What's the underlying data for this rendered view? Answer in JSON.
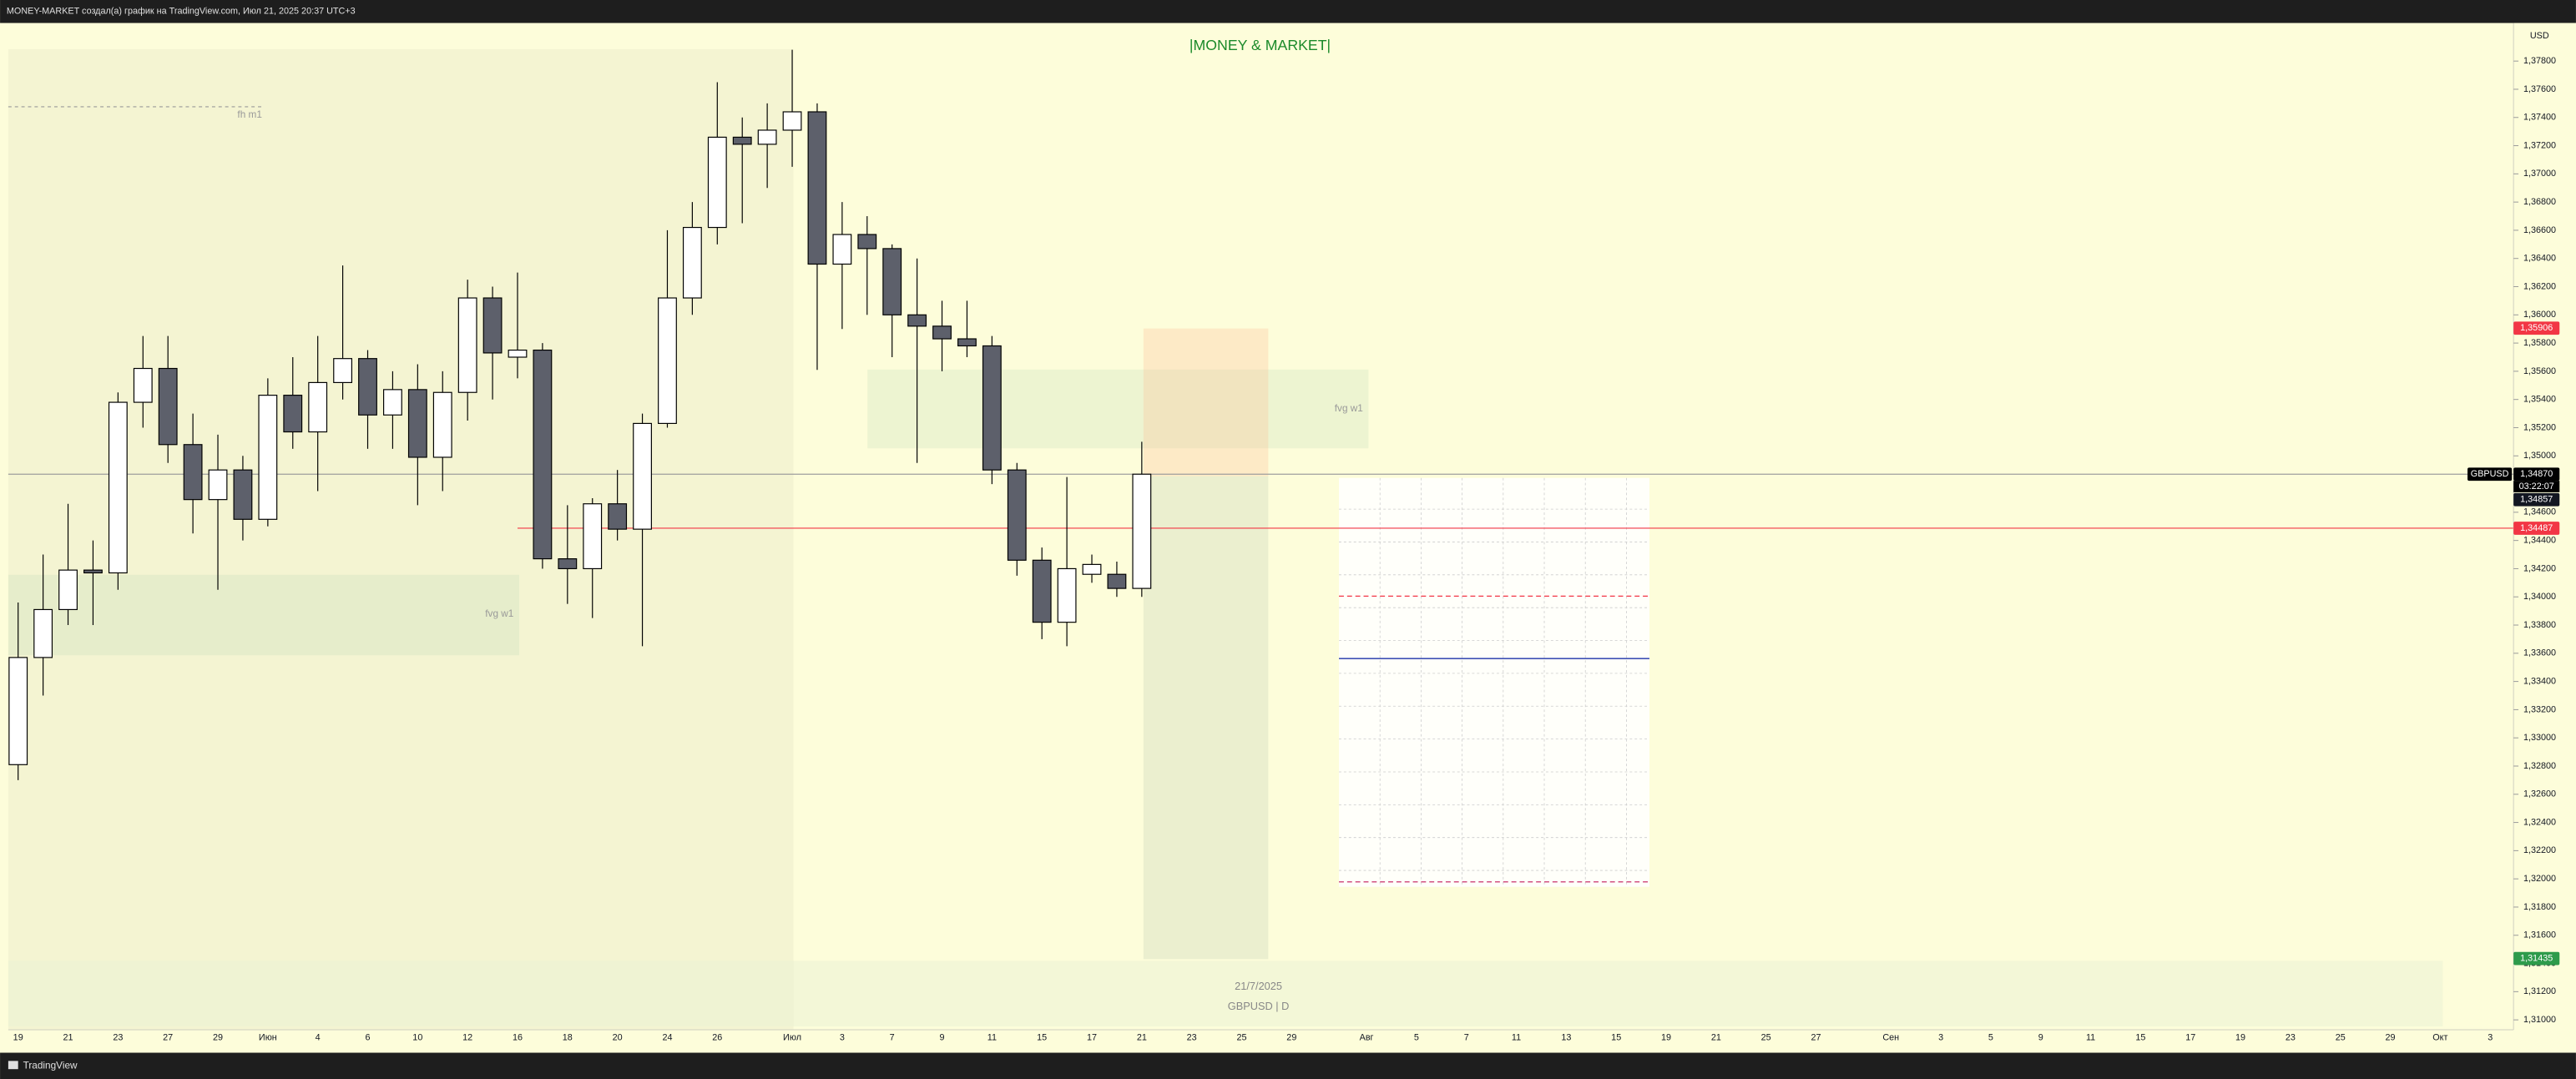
{
  "header": "MONEY-MARKET создал(а) график на TradingView.com, Июл 21, 2025 20:37 UTC+3",
  "footer": "TradingView",
  "chart_data": {
    "type": "candlestick",
    "title": "|MONEY & MARKET|",
    "currency": "USD",
    "watermark": [
      "21/7/2025",
      "GBPUSD | D"
    ],
    "annotations": [
      "fh m1",
      "fvg w1",
      "fvg w1"
    ],
    "categories": [
      "19",
      null,
      "21",
      null,
      "23",
      null,
      "27",
      null,
      "29",
      null,
      "Июн",
      null,
      "4",
      null,
      "6",
      null,
      "10",
      null,
      "12",
      null,
      "16",
      null,
      "18",
      null,
      "20",
      null,
      "24",
      null,
      "26",
      null,
      null,
      "Июл",
      null,
      "3",
      null,
      "7",
      null,
      "9",
      null,
      "11",
      null,
      "15",
      null,
      "17",
      null,
      "21",
      null,
      "23",
      null,
      "25",
      null,
      "29",
      null,
      null,
      "Авг",
      null,
      "5",
      null,
      "7",
      null,
      "11",
      null,
      "13",
      null,
      "15",
      null,
      "19",
      null,
      "21",
      null,
      "25",
      null,
      "27",
      null,
      null,
      "Сен",
      null,
      "3",
      null,
      "5",
      null,
      "9",
      null,
      "11",
      null,
      "15",
      null,
      "17",
      null,
      "19",
      null,
      "23",
      null,
      "25",
      null,
      "29",
      null,
      "Окт",
      null,
      "3"
    ],
    "open": [
      1.3281,
      1.3357,
      1.3391,
      1.3419,
      1.3417,
      1.3538,
      1.3562,
      1.3508,
      1.3469,
      1.349,
      1.3455,
      1.3543,
      1.3517,
      1.3552,
      1.3569,
      1.3529,
      1.3547,
      1.3499,
      1.3545,
      1.3612,
      1.357,
      1.3575,
      1.3427,
      1.342,
      1.3466,
      1.3448,
      1.3523,
      1.3612,
      1.3662,
      1.3726,
      1.3721,
      1.3731,
      1.3744,
      1.3636,
      1.3657,
      1.3647,
      1.36,
      1.3592,
      1.3583,
      1.3578,
      1.349,
      1.3426,
      1.3382,
      1.3416,
      1.3416,
      1.3406,
      null,
      null,
      null,
      null,
      null,
      null,
      null,
      null,
      null,
      null,
      null,
      null,
      null,
      null,
      null,
      null,
      null,
      null,
      null,
      null,
      null,
      null,
      null,
      null,
      null,
      null,
      null,
      null,
      null,
      null,
      null,
      null,
      null,
      null,
      null,
      null,
      null,
      null,
      null,
      null,
      null,
      null,
      null,
      null,
      null,
      null,
      null,
      null,
      null,
      null,
      null,
      null,
      null,
      null
    ],
    "high": [
      1.3396,
      1.343,
      1.3466,
      1.344,
      1.3545,
      1.3585,
      1.3585,
      1.353,
      1.3515,
      1.35,
      1.3555,
      1.357,
      1.3585,
      1.3635,
      1.3575,
      1.356,
      1.3565,
      1.356,
      1.3625,
      1.362,
      1.363,
      1.358,
      1.3465,
      1.347,
      1.349,
      1.353,
      1.366,
      1.368,
      1.3765,
      1.374,
      1.375,
      1.3788,
      1.375,
      1.368,
      1.367,
      1.365,
      1.364,
      1.361,
      1.361,
      1.3585,
      1.3495,
      1.3435,
      1.3485,
      1.343,
      1.3425,
      1.351,
      null,
      null,
      null,
      null,
      null,
      null,
      null,
      null,
      null,
      null,
      null,
      null,
      null,
      null,
      null,
      null,
      null,
      null,
      null,
      null,
      null,
      null,
      null,
      null,
      null,
      null,
      null,
      null,
      null,
      null,
      null,
      null,
      null,
      null,
      null,
      null,
      null,
      null,
      null,
      null,
      null,
      null,
      null,
      null,
      null,
      null,
      null,
      null,
      null,
      null,
      null,
      null,
      null,
      null
    ],
    "low": [
      1.327,
      1.333,
      1.338,
      1.338,
      1.3405,
      1.352,
      1.3495,
      1.3445,
      1.3405,
      1.344,
      1.345,
      1.3505,
      1.3475,
      1.354,
      1.3505,
      1.3505,
      1.3465,
      1.3475,
      1.3525,
      1.354,
      1.3555,
      1.342,
      1.3395,
      1.3385,
      1.344,
      1.3365,
      1.352,
      1.36,
      1.365,
      1.3665,
      1.369,
      1.3705,
      1.3561,
      1.359,
      1.36,
      1.357,
      1.3495,
      1.356,
      1.357,
      1.348,
      1.3415,
      1.337,
      1.3365,
      1.341,
      1.34,
      1.34,
      null,
      null,
      null,
      null,
      null,
      null,
      null,
      null,
      null,
      null,
      null,
      null,
      null,
      null,
      null,
      null,
      null,
      null,
      null,
      null,
      null,
      null,
      null,
      null,
      null,
      null,
      null,
      null,
      null,
      null,
      null,
      null,
      null,
      null,
      null,
      null,
      null,
      null,
      null,
      null,
      null,
      null,
      null,
      null,
      null,
      null,
      null,
      null,
      null,
      null,
      null,
      null,
      null,
      null
    ],
    "close": [
      1.3357,
      1.3391,
      1.3419,
      1.3417,
      1.3538,
      1.3562,
      1.3508,
      1.3469,
      1.349,
      1.3455,
      1.3543,
      1.3517,
      1.3552,
      1.3569,
      1.3529,
      1.3547,
      1.3499,
      1.3545,
      1.3612,
      1.3573,
      1.3575,
      1.3427,
      1.342,
      1.3466,
      1.3448,
      1.3523,
      1.3612,
      1.3662,
      1.3726,
      1.3721,
      1.3731,
      1.3744,
      1.3636,
      1.3657,
      1.3647,
      1.36,
      1.3592,
      1.3583,
      1.3578,
      1.349,
      1.3426,
      1.3382,
      1.342,
      1.3423,
      1.3406,
      1.3487,
      null,
      null,
      null,
      null,
      null,
      null,
      null,
      null,
      null,
      null,
      null,
      null,
      null,
      null,
      null,
      null,
      null,
      null,
      null,
      null,
      null,
      null,
      null,
      null,
      null,
      null,
      null,
      null,
      null,
      null,
      null,
      null,
      null,
      null,
      null,
      null,
      null,
      null,
      null,
      null,
      null,
      null,
      null,
      null,
      null,
      null,
      null,
      null,
      null,
      null,
      null,
      null,
      null,
      null
    ],
    "up_color": "#ffffff",
    "down_color": "#5d606b",
    "ylim": [
      1.3093,
      1.3807
    ],
    "yticks": [
      {
        "value": 1.31,
        "label": "1,31000"
      },
      {
        "value": 1.312,
        "label": "1,31200"
      },
      {
        "value": 1.314,
        "label": "1,31400"
      },
      {
        "value": 1.316,
        "label": "1,31600"
      },
      {
        "value": 1.318,
        "label": "1,31800"
      },
      {
        "value": 1.32,
        "label": "1,32000"
      },
      {
        "value": 1.322,
        "label": "1,32200"
      },
      {
        "value": 1.324,
        "label": "1,32400"
      },
      {
        "value": 1.326,
        "label": "1,32600"
      },
      {
        "value": 1.328,
        "label": "1,32800"
      },
      {
        "value": 1.33,
        "label": "1,33000"
      },
      {
        "value": 1.332,
        "label": "1,33200"
      },
      {
        "value": 1.334,
        "label": "1,33400"
      },
      {
        "value": 1.336,
        "label": "1,33600"
      },
      {
        "value": 1.338,
        "label": "1,33800"
      },
      {
        "value": 1.34,
        "label": "1,34000"
      },
      {
        "value": 1.342,
        "label": "1,34200"
      },
      {
        "value": 1.344,
        "label": "1,34400"
      },
      {
        "value": 1.346,
        "label": "1,34600"
      },
      {
        "value": 1.348,
        "label": "1,34800"
      },
      {
        "value": 1.35,
        "label": "1,35000"
      },
      {
        "value": 1.352,
        "label": "1,35200"
      },
      {
        "value": 1.354,
        "label": "1,35400"
      },
      {
        "value": 1.356,
        "label": "1,35600"
      },
      {
        "value": 1.358,
        "label": "1,35800"
      },
      {
        "value": 1.36,
        "label": "1,36000"
      },
      {
        "value": 1.362,
        "label": "1,36200"
      },
      {
        "value": 1.364,
        "label": "1,36400"
      },
      {
        "value": 1.366,
        "label": "1,36600"
      },
      {
        "value": 1.368,
        "label": "1,36800"
      },
      {
        "value": 1.37,
        "label": "1,37000"
      },
      {
        "value": 1.372,
        "label": "1,37200"
      },
      {
        "value": 1.374,
        "label": "1,37400"
      },
      {
        "value": 1.376,
        "label": "1,37600"
      },
      {
        "value": 1.378,
        "label": "1,37800"
      }
    ],
    "price_flags": [
      {
        "label": "1,35906",
        "value": 1.35906,
        "color": "#f23645"
      },
      {
        "label": "1,34870",
        "value": 1.3487,
        "color": "#000000",
        "symbol": "GBPUSD",
        "countdown": "03:22:07",
        "line": true
      },
      {
        "label": "1,34857",
        "value": 1.34857,
        "color": "#131722"
      },
      {
        "label": "1,34487",
        "value": 1.34487,
        "color": "#f23645",
        "line": true
      },
      {
        "label": "1,31435",
        "value": 1.31435,
        "color": "#2e9b4b"
      }
    ]
  }
}
